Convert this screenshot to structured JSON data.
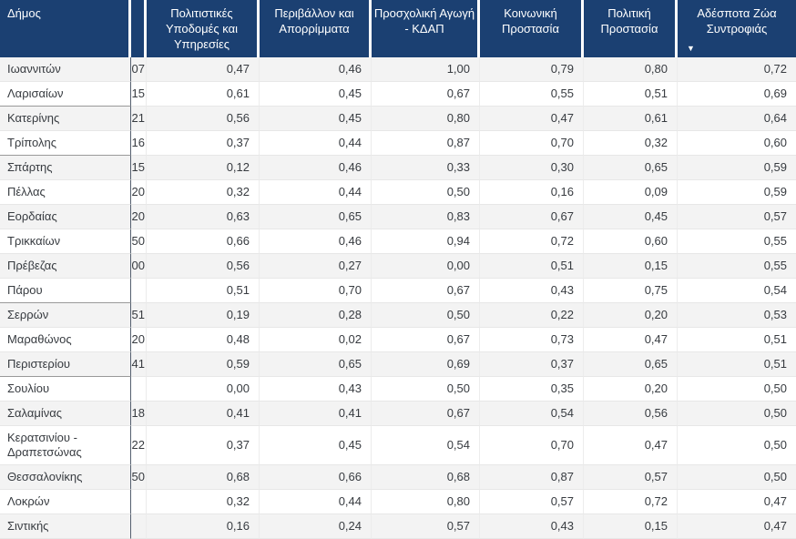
{
  "table": {
    "sort_icon": "▼",
    "columns": [
      {
        "label": "Δήμος",
        "sorted": false
      },
      {
        "label": "",
        "sorted": false
      },
      {
        "label": "Πολιτιστικές Υποδομές και Υπηρεσίες",
        "sorted": false
      },
      {
        "label": "Περιβάλλον και Απορρίμματα",
        "sorted": false
      },
      {
        "label": "Προσχολική Αγωγή - ΚΔΑΠ",
        "sorted": false
      },
      {
        "label": "Κοινωνική Προστασία",
        "sorted": false
      },
      {
        "label": "Πολιτική Προστασία",
        "sorted": false
      },
      {
        "label": "Αδέσποτα Ζώα Συντροφιάς",
        "sorted": "descending"
      }
    ],
    "rows": [
      {
        "municipality": "Ιωαννιτών",
        "clipped": "07",
        "values": [
          "0,47",
          "0,46",
          "1,00",
          "0,79",
          "0,80",
          "0,72"
        ],
        "group_end": false
      },
      {
        "municipality": "Λαρισαίων",
        "clipped": "15",
        "values": [
          "0,61",
          "0,45",
          "0,67",
          "0,55",
          "0,51",
          "0,69"
        ],
        "group_end": true
      },
      {
        "municipality": "Κατερίνης",
        "clipped": "21",
        "values": [
          "0,56",
          "0,45",
          "0,80",
          "0,47",
          "0,61",
          "0,64"
        ],
        "group_end": false
      },
      {
        "municipality": "Τρίπολης",
        "clipped": "16",
        "values": [
          "0,37",
          "0,44",
          "0,87",
          "0,70",
          "0,32",
          "0,60"
        ],
        "group_end": true
      },
      {
        "municipality": "Σπάρτης",
        "clipped": "15",
        "values": [
          "0,12",
          "0,46",
          "0,33",
          "0,30",
          "0,65",
          "0,59"
        ],
        "group_end": false
      },
      {
        "municipality": "Πέλλας",
        "clipped": "20",
        "values": [
          "0,32",
          "0,44",
          "0,50",
          "0,16",
          "0,09",
          "0,59"
        ],
        "group_end": false
      },
      {
        "municipality": "Εορδαίας",
        "clipped": "20",
        "values": [
          "0,63",
          "0,65",
          "0,83",
          "0,67",
          "0,45",
          "0,57"
        ],
        "group_end": false
      },
      {
        "municipality": "Τρικκαίων",
        "clipped": "50",
        "values": [
          "0,66",
          "0,46",
          "0,94",
          "0,72",
          "0,60",
          "0,55"
        ],
        "group_end": false
      },
      {
        "municipality": "Πρέβεζας",
        "clipped": "00",
        "values": [
          "0,56",
          "0,27",
          "0,00",
          "0,51",
          "0,15",
          "0,55"
        ],
        "group_end": false
      },
      {
        "municipality": "Πάρου",
        "clipped": "",
        "values": [
          "0,51",
          "0,70",
          "0,67",
          "0,43",
          "0,75",
          "0,54"
        ],
        "group_end": true
      },
      {
        "municipality": "Σερρών",
        "clipped": "51",
        "values": [
          "0,19",
          "0,28",
          "0,50",
          "0,22",
          "0,20",
          "0,53"
        ],
        "group_end": false
      },
      {
        "municipality": "Μαραθώνος",
        "clipped": "20",
        "values": [
          "0,48",
          "0,02",
          "0,67",
          "0,73",
          "0,47",
          "0,51"
        ],
        "group_end": false
      },
      {
        "municipality": "Περιστερίου",
        "clipped": "41",
        "values": [
          "0,59",
          "0,65",
          "0,69",
          "0,37",
          "0,65",
          "0,51"
        ],
        "group_end": true
      },
      {
        "municipality": "Σουλίου",
        "clipped": "",
        "values": [
          "0,00",
          "0,43",
          "0,50",
          "0,35",
          "0,20",
          "0,50"
        ],
        "group_end": false
      },
      {
        "municipality": "Σαλαμίνας",
        "clipped": "18",
        "values": [
          "0,41",
          "0,41",
          "0,67",
          "0,54",
          "0,56",
          "0,50"
        ],
        "group_end": false
      },
      {
        "municipality": "Κερατσινίου - Δραπετσώνας",
        "clipped": "22",
        "values": [
          "0,37",
          "0,45",
          "0,54",
          "0,70",
          "0,47",
          "0,50"
        ],
        "group_end": false
      },
      {
        "municipality": "Θεσσαλονίκης",
        "clipped": "50",
        "values": [
          "0,68",
          "0,66",
          "0,68",
          "0,87",
          "0,57",
          "0,50"
        ],
        "group_end": false
      },
      {
        "municipality": "Λοκρών",
        "clipped": "",
        "values": [
          "0,32",
          "0,44",
          "0,80",
          "0,57",
          "0,72",
          "0,47"
        ],
        "group_end": false
      },
      {
        "municipality": "Σιντικής",
        "clipped": "",
        "values": [
          "0,16",
          "0,24",
          "0,57",
          "0,43",
          "0,15",
          "0,47"
        ],
        "group_end": false
      }
    ]
  },
  "colors": {
    "header_bg": "#1b4072",
    "header_text": "#ffffff",
    "row_stripe": "#f3f3f3",
    "body_text": "#373b40",
    "column_divider_dark": "#55606f"
  }
}
